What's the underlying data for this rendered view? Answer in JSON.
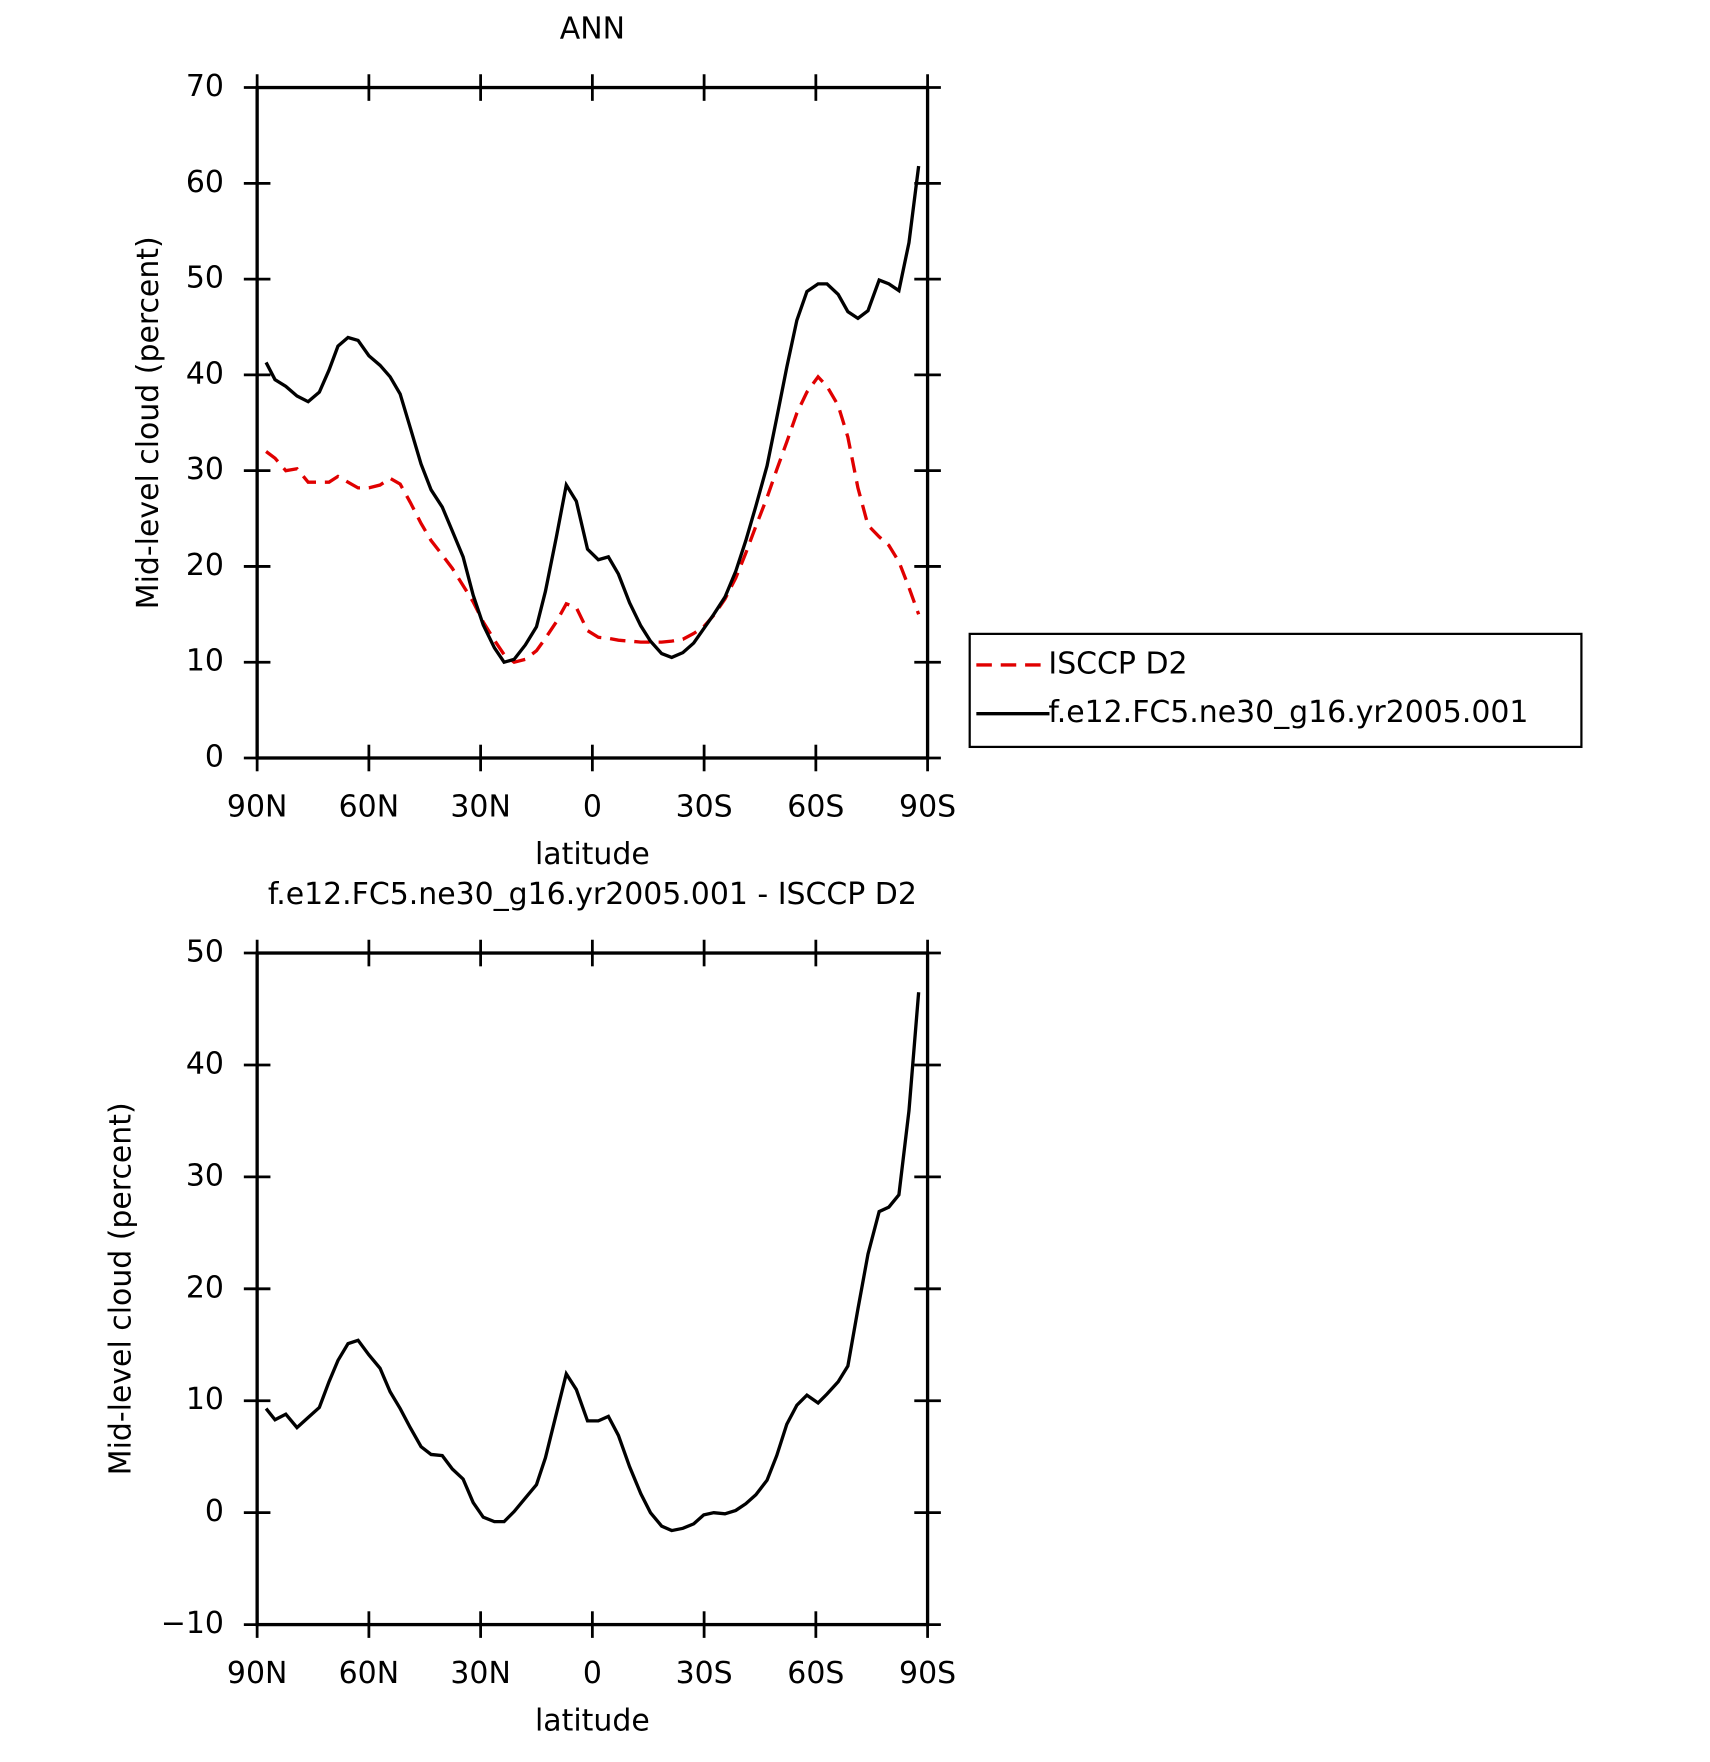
{
  "chart_data": [
    {
      "type": "line",
      "title": "ANN",
      "xlabel": "latitude",
      "ylabel": "Mid-level cloud (percent)",
      "x": [
        87.6,
        85.2,
        82.3,
        79.3,
        76.3,
        73.3,
        70.7,
        68.3,
        65.6,
        62.9,
        60,
        57,
        54.3,
        51.6,
        48.9,
        46,
        43.3,
        40.3,
        37.6,
        34.7,
        32,
        29.3,
        26.3,
        23.7,
        21,
        18,
        15,
        12.6,
        9.7,
        7,
        4.3,
        1.3,
        -1.6,
        -4.3,
        -7,
        -10,
        -13,
        -15.6,
        -18.6,
        -21.3,
        -24.3,
        -27.2,
        -29.9,
        -32.6,
        -35.6,
        -38.5,
        -41.2,
        -43.9,
        -46.9,
        -49.5,
        -52.2,
        -54.9,
        -57.6,
        -60.6,
        -63,
        -66,
        -68.6,
        -71.3,
        -74,
        -77,
        -79.6,
        -82.3,
        -85,
        -87.6
      ],
      "series": [
        {
          "name": "ISCCP D2",
          "color": "#e00000",
          "dash": true,
          "values": [
            32.0,
            31.3,
            30.0,
            30.2,
            28.8,
            28.8,
            28.8,
            29.4,
            28.8,
            28.2,
            28.2,
            28.5,
            29.2,
            28.6,
            26.7,
            24.5,
            22.7,
            21.2,
            19.8,
            18,
            16.3,
            14.2,
            12.3,
            10.8,
            10,
            10.3,
            11.2,
            12.5,
            14.2,
            16.1,
            15.7,
            13.3,
            12.6,
            12.5,
            12.3,
            12.2,
            12.1,
            12.1,
            12.1,
            12.2,
            12.4,
            13,
            13.7,
            14.9,
            16.6,
            18.8,
            21.4,
            24.2,
            27.2,
            30.1,
            33,
            36,
            38.2,
            39.8,
            38.8,
            36.8,
            33.5,
            28.2,
            24.3,
            23.1,
            22.2,
            20.5,
            17.8,
            15
          ]
        },
        {
          "name": "f.e12.FC5.ne30_g16.yr2005.001",
          "color": "#000000",
          "dash": false,
          "values": [
            41.3,
            39.5,
            38.8,
            37.8,
            37.2,
            38.2,
            40.5,
            43.0,
            43.9,
            43.6,
            42.0,
            41.0,
            39.8,
            38,
            34.5,
            30.7,
            28,
            26.2,
            23.7,
            21,
            17,
            13.9,
            11.5,
            10,
            10.3,
            11.8,
            13.7,
            17.4,
            23,
            28.5,
            26.8,
            21.8,
            20.7,
            21,
            19.2,
            16.2,
            13.8,
            12.2,
            10.9,
            10.5,
            11,
            12,
            13.5,
            15,
            16.8,
            19.5,
            22.7,
            26.3,
            30.5,
            35.5,
            40.8,
            45.7,
            48.7,
            49.5,
            49.5,
            48.4,
            46.6,
            45.9,
            46.7,
            49.9,
            49.5,
            48.8,
            53.8,
            61.8
          ]
        }
      ],
      "xlim": [
        90,
        -90
      ],
      "xticks": [
        {
          "value": 90,
          "label": "90N"
        },
        {
          "value": 60,
          "label": "60N"
        },
        {
          "value": 30,
          "label": "30N"
        },
        0,
        {
          "value": -30,
          "label": "30S"
        },
        {
          "value": -60,
          "label": "60S"
        },
        {
          "value": -90,
          "label": "90S"
        }
      ],
      "ylim": [
        0,
        70
      ],
      "yticks": [
        0,
        10,
        20,
        30,
        40,
        50,
        60,
        70
      ],
      "legend": "right"
    },
    {
      "type": "line",
      "title": "f.e12.FC5.ne30_g16.yr2005.001 - ISCCP D2",
      "xlabel": "latitude",
      "ylabel": "Mid-level cloud (percent)",
      "x": [
        87.6,
        85.2,
        82.3,
        79.3,
        76.3,
        73.3,
        70.7,
        68.3,
        65.6,
        62.9,
        60,
        57,
        54.3,
        51.6,
        48.9,
        46,
        43.3,
        40.3,
        37.6,
        34.7,
        32,
        29.3,
        26.3,
        23.7,
        21,
        18,
        15,
        12.6,
        9.7,
        7,
        4.3,
        1.3,
        -1.6,
        -4.3,
        -7,
        -10,
        -13,
        -15.6,
        -18.6,
        -21.3,
        -24.3,
        -27.2,
        -29.9,
        -32.6,
        -35.6,
        -38.5,
        -41.2,
        -43.9,
        -46.9,
        -49.5,
        -52.2,
        -54.9,
        -57.6,
        -60.6,
        -63,
        -66,
        -68.6,
        -71.3,
        -74,
        -77,
        -79.6,
        -82.3,
        -85,
        -87.6
      ],
      "color": "#000000",
      "values": [
        9.3,
        8.3,
        8.8,
        7.6,
        8.5,
        9.4,
        11.7,
        13.6,
        15.1,
        15.4,
        14.1,
        12.9,
        10.8,
        9.3,
        7.6,
        5.9,
        5.2,
        5.1,
        3.9,
        3,
        0.9,
        -0.4,
        -0.8,
        -0.8,
        0.1,
        1.3,
        2.5,
        4.9,
        8.8,
        12.4,
        11,
        8.2,
        8.2,
        8.6,
        6.9,
        4.1,
        1.7,
        0,
        -1.2,
        -1.6,
        -1.4,
        -1,
        -0.2,
        0,
        -0.1,
        0.2,
        0.8,
        1.6,
        2.9,
        5.1,
        7.9,
        9.6,
        10.5,
        9.8,
        10.6,
        11.7,
        13.1,
        18.2,
        23.1,
        26.9,
        27.3,
        28.4,
        35.9,
        46.5
      ],
      "xlim": [
        90,
        -90
      ],
      "xticks": [
        {
          "value": 90,
          "label": "90N"
        },
        {
          "value": 60,
          "label": "60N"
        },
        {
          "value": 30,
          "label": "30N"
        },
        0,
        {
          "value": -30,
          "label": "30S"
        },
        {
          "value": -60,
          "label": "60S"
        },
        {
          "value": -90,
          "label": "90S"
        }
      ],
      "ylim": [
        -10,
        50
      ],
      "yticks": [
        {
          "value": -10,
          "label": "−10"
        },
        0,
        10,
        20,
        30,
        40,
        50
      ]
    }
  ]
}
